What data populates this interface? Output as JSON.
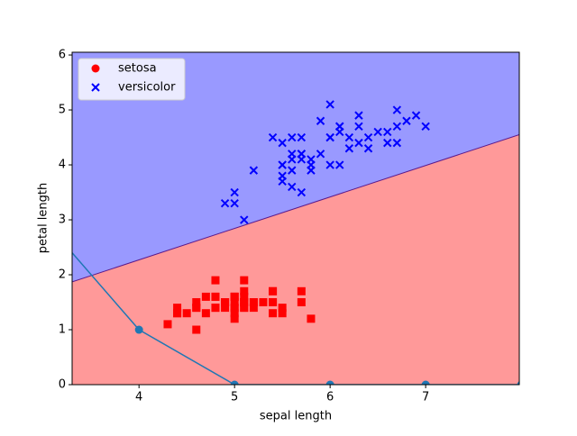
{
  "chart_data": {
    "type": "scatter",
    "xlabel": "sepal length",
    "ylabel": "petal length",
    "xlim": [
      3.3,
      7.98
    ],
    "ylim": [
      0,
      6.05
    ],
    "xticks": [
      4,
      5,
      6,
      7
    ],
    "yticks": [
      0,
      1,
      2,
      3,
      4,
      5,
      6
    ],
    "legend": "upper left",
    "regions": {
      "colors": [
        "#ff9999",
        "#9999ff"
      ],
      "line_color": "#5a1a8c",
      "x": [
        3.3,
        7.98
      ],
      "y": [
        1.87,
        4.55
      ]
    },
    "series": [
      {
        "name": "setosa",
        "color": "#ff0000",
        "marker": "s",
        "x": [
          5.1,
          4.9,
          4.7,
          4.6,
          5.0,
          5.4,
          4.6,
          5.0,
          4.4,
          4.9,
          5.4,
          4.8,
          4.8,
          4.3,
          5.8,
          5.7,
          5.4,
          5.1,
          5.7,
          5.1,
          5.4,
          5.1,
          4.6,
          5.1,
          4.8,
          5.0,
          5.0,
          5.2,
          5.2,
          4.7,
          4.8,
          5.4,
          5.2,
          5.5,
          4.9,
          5.0,
          5.5,
          4.9,
          4.4,
          5.1,
          5.0,
          4.5,
          4.4,
          5.0,
          5.1,
          4.8,
          5.1,
          4.6,
          5.3,
          5.0
        ],
        "values": [
          1.4,
          1.4,
          1.3,
          1.5,
          1.4,
          1.7,
          1.4,
          1.5,
          1.4,
          1.5,
          1.5,
          1.6,
          1.4,
          1.1,
          1.2,
          1.5,
          1.3,
          1.4,
          1.7,
          1.5,
          1.7,
          1.5,
          1.0,
          1.7,
          1.9,
          1.6,
          1.6,
          1.5,
          1.4,
          1.6,
          1.6,
          1.5,
          1.5,
          1.4,
          1.5,
          1.2,
          1.3,
          1.5,
          1.3,
          1.5,
          1.3,
          1.3,
          1.3,
          1.6,
          1.9,
          1.4,
          1.6,
          1.4,
          1.5,
          1.4
        ]
      },
      {
        "name": "versicolor",
        "color": "#0000ff",
        "marker": "x",
        "x": [
          7.0,
          6.4,
          6.9,
          5.5,
          6.5,
          5.7,
          6.3,
          4.9,
          6.6,
          5.2,
          5.0,
          5.9,
          6.0,
          6.1,
          5.6,
          6.7,
          5.6,
          5.8,
          6.2,
          5.6,
          5.9,
          6.1,
          6.3,
          6.1,
          6.4,
          6.6,
          6.8,
          6.7,
          6.0,
          5.7,
          5.5,
          5.5,
          5.8,
          6.0,
          5.4,
          6.0,
          6.7,
          6.3,
          5.6,
          5.5,
          5.5,
          6.1,
          5.8,
          5.0,
          5.6,
          5.7,
          5.7,
          6.2,
          5.1,
          5.7
        ],
        "values": [
          4.7,
          4.5,
          4.9,
          4.0,
          4.6,
          4.5,
          4.7,
          3.3,
          4.6,
          3.9,
          3.5,
          4.2,
          4.0,
          4.7,
          3.6,
          4.4,
          4.5,
          4.1,
          4.5,
          3.9,
          4.8,
          4.0,
          4.9,
          4.7,
          4.3,
          4.4,
          4.8,
          5.0,
          4.5,
          3.5,
          3.8,
          3.7,
          3.9,
          5.1,
          4.5,
          4.5,
          4.7,
          4.4,
          4.1,
          4.0,
          4.4,
          4.6,
          4.0,
          3.3,
          4.2,
          4.2,
          4.2,
          4.3,
          3.0,
          4.1
        ]
      },
      {
        "color": "#1f77b4",
        "marker": "o-",
        "x": [
          3,
          4,
          5,
          6,
          7,
          8
        ],
        "values": [
          3,
          1,
          0,
          0,
          0,
          0
        ]
      }
    ]
  }
}
